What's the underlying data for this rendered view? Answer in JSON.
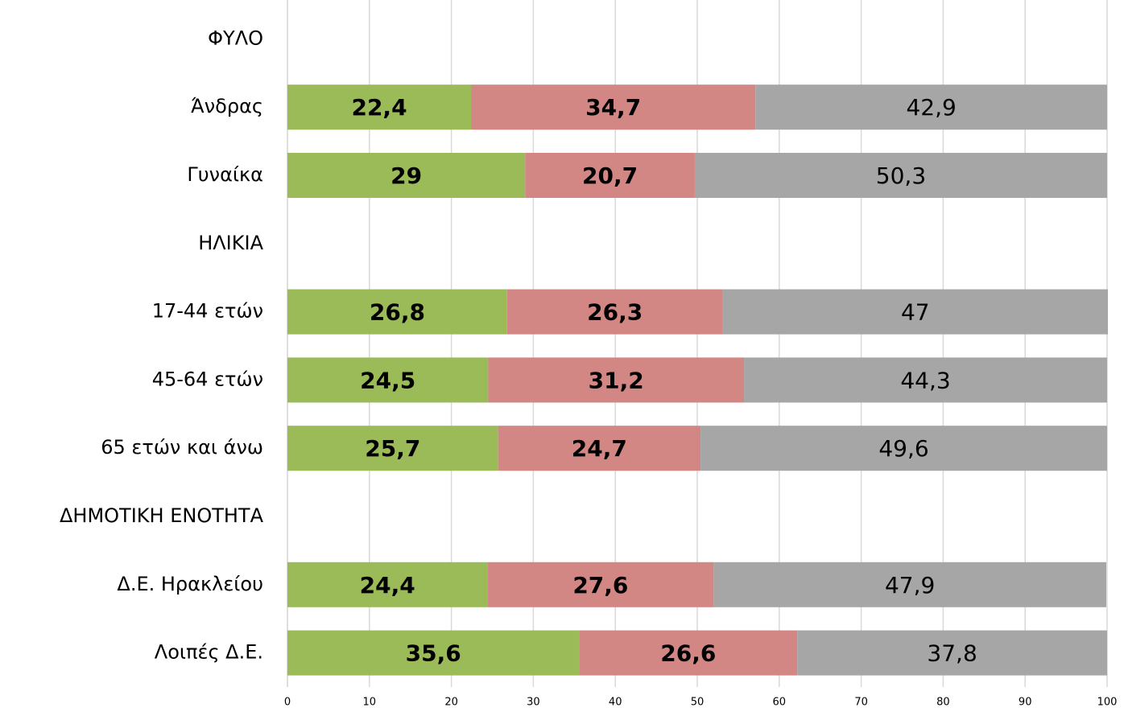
{
  "chart_data": {
    "type": "stacked-barh",
    "categories": [
      "ΦΥΛΟ",
      "Άνδρας",
      "Γυναίκα",
      "ΗΛΙΚΙΑ",
      "17-44 ετών",
      "45-64 ετών",
      "65 ετών και άνω",
      "ΔΗΜΟΤΙΚΗ ΕΝΟΤΗΤΑ",
      "Δ.Ε. Ηρακλείου",
      "Λοιπές Δ.Ε."
    ],
    "series": [
      {
        "color": "#9bbb59",
        "values": [
          null,
          22.4,
          29,
          null,
          26.8,
          24.5,
          25.7,
          null,
          24.4,
          35.6
        ],
        "value_labels": [
          null,
          "22,4",
          "29",
          null,
          "26,8",
          "24,5",
          "25,7",
          null,
          "24,4",
          "35,6"
        ]
      },
      {
        "color": "#d38784",
        "values": [
          null,
          34.7,
          20.7,
          null,
          26.3,
          31.2,
          24.7,
          null,
          27.6,
          26.6
        ],
        "value_labels": [
          null,
          "34,7",
          "20,7",
          null,
          "26,3",
          "31,2",
          "24,7",
          null,
          "27,6",
          "26,6"
        ]
      },
      {
        "color": "#a6a6a6",
        "values": [
          null,
          42.9,
          50.3,
          null,
          47,
          44.3,
          49.6,
          null,
          47.9,
          37.8
        ],
        "value_labels": [
          null,
          "42,9",
          "50,3",
          null,
          "47",
          "44,3",
          "49,6",
          null,
          "47,9",
          "37,8"
        ]
      }
    ],
    "xlim": [
      0,
      100
    ],
    "xticks": [
      0,
      10,
      20,
      30,
      40,
      50,
      60,
      70,
      80,
      90,
      100
    ],
    "grid": true
  }
}
